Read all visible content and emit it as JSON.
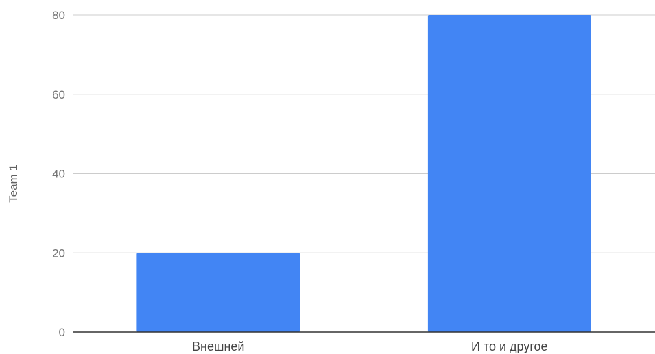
{
  "chart_data": {
    "type": "bar",
    "categories": [
      "Внешней",
      "И то и другое"
    ],
    "series": [
      {
        "name": "Team 1",
        "values": [
          20,
          80
        ],
        "color": "#4285f4"
      }
    ],
    "xlabel": "",
    "ylabel": "Team 1",
    "ylim": [
      0,
      80
    ],
    "yticks": [
      0,
      20,
      40,
      60,
      80
    ],
    "grid": true,
    "legend": "none"
  }
}
